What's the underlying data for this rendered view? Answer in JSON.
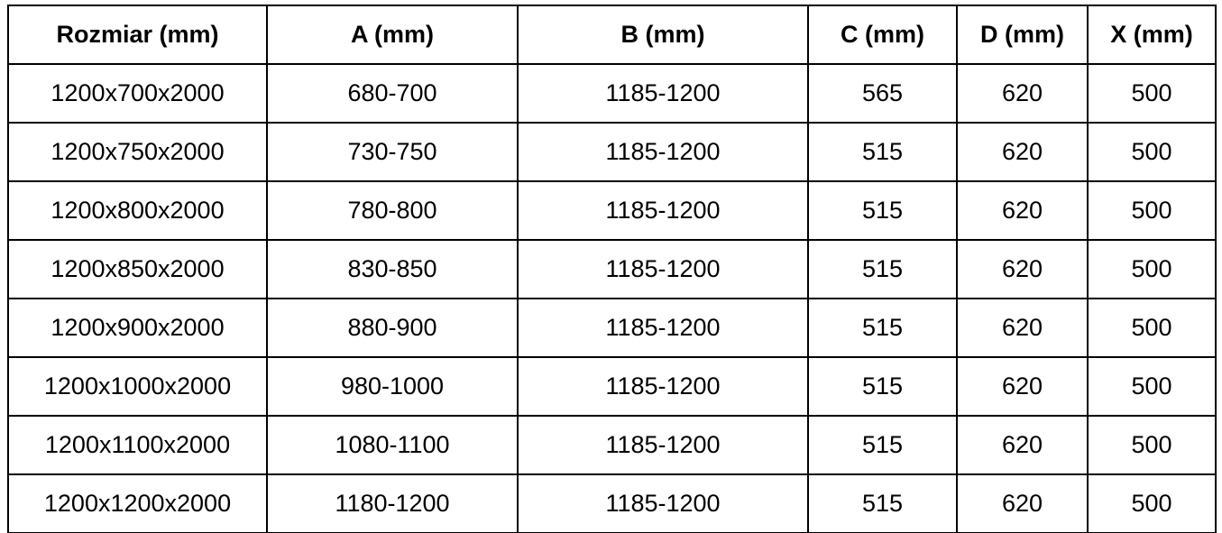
{
  "table": {
    "name": "Tabela rozmiarów",
    "columns": [
      "Rozmiar (mm)",
      "A (mm)",
      "B (mm)",
      "C (mm)",
      "D (mm)",
      "X (mm)"
    ],
    "rows": [
      [
        "1200x700x2000",
        "680-700",
        "1185-1200",
        "565",
        "620",
        "500"
      ],
      [
        "1200x750x2000",
        "730-750",
        "1185-1200",
        "515",
        "620",
        "500"
      ],
      [
        "1200x800x2000",
        "780-800",
        "1185-1200",
        "515",
        "620",
        "500"
      ],
      [
        "1200x850x2000",
        "830-850",
        "1185-1200",
        "515",
        "620",
        "500"
      ],
      [
        "1200x900x2000",
        "880-900",
        "1185-1200",
        "515",
        "620",
        "500"
      ],
      [
        "1200x1000x2000",
        "980-1000",
        "1185-1200",
        "515",
        "620",
        "500"
      ],
      [
        "1200x1100x2000",
        "1080-1100",
        "1185-1200",
        "515",
        "620",
        "500"
      ],
      [
        "1200x1200x2000",
        "1180-1200",
        "1185-1200",
        "515",
        "620",
        "500"
      ]
    ]
  },
  "colors": {
    "background": "#ffffff",
    "border": "#000000",
    "text": "#000000"
  }
}
